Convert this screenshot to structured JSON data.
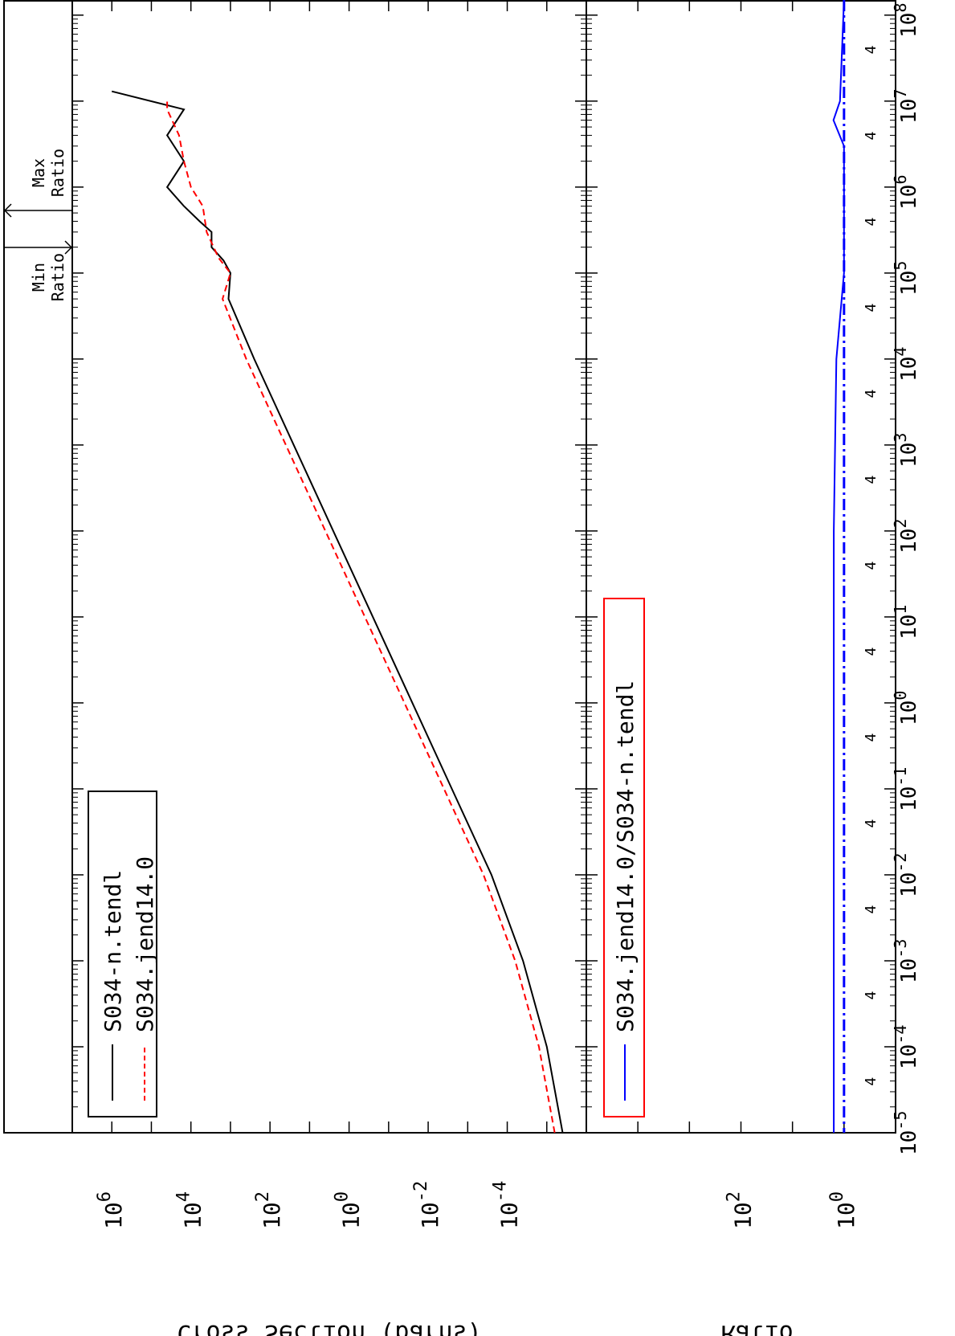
{
  "chart_data": [
    {
      "type": "line",
      "orientation": "rotated-90-clockwise",
      "x_scale": "log",
      "y_scale": "log",
      "ylabel": "Cross Section (barns)",
      "xlim": [
        1e-05,
        150000000
      ],
      "ylim": [
        1e-06,
        10000000.0
      ],
      "x_ticks": [
        "10^-5",
        "10^-4",
        "10^-3",
        "10^-2",
        "10^-1",
        "10^0",
        "10^1",
        "10^2",
        "10^3",
        "10^4",
        "10^5",
        "10^6",
        "10^7",
        "10^8"
      ],
      "x_tick_minor_label": "4",
      "y_ticks": [
        "10^-4",
        "10^-2",
        "10^0",
        "10^2",
        "10^4",
        "10^6"
      ],
      "series": [
        {
          "name": "S034-n.tendl",
          "color": "#000000",
          "style": "solid",
          "x": [
            1e-05,
            0.0001,
            0.001,
            0.01,
            0.1,
            1,
            10,
            100,
            1000,
            10000,
            50000,
            100000,
            140000,
            200000,
            300000,
            400000,
            600000,
            1000000,
            2000000,
            4000000,
            8000000,
            13000000
          ],
          "y": [
            3.98e-06,
            1e-05,
            3.98e-05,
            0.000251,
            0.00251,
            0.0251,
            0.251,
            2.51,
            25.1,
            251,
            1122,
            1000,
            1500,
            3000,
            3000,
            6000,
            15000,
            40000,
            15000,
            40000,
            15000,
            1000000.0
          ]
        },
        {
          "name": "S034.jend14.0",
          "color": "#ff0000",
          "style": "dashed",
          "x": [
            1e-05,
            0.0001,
            0.001,
            0.01,
            0.1,
            1,
            10,
            100,
            1000,
            10000,
            50000,
            100000,
            150000,
            300000,
            600000,
            1000000,
            2000000,
            4000000,
            8000000,
            10000000
          ],
          "y": [
            6.3e-06,
            1.58e-05,
            6.31e-05,
            0.000398,
            0.00398,
            0.0398,
            0.398,
            3.98,
            39.8,
            398,
            1585,
            1000,
            2000,
            4000,
            5000,
            10000,
            15000,
            20000,
            40000,
            40000
          ]
        }
      ]
    },
    {
      "type": "line",
      "orientation": "rotated-90-clockwise",
      "x_scale": "log",
      "y_scale": "log",
      "ylabel": "Ratio",
      "xlim": [
        1e-05,
        150000000
      ],
      "ylim": [
        0.1,
        100000
      ],
      "x_ticks": [
        "10^-5",
        "10^-4",
        "10^-3",
        "10^-2",
        "10^-1",
        "10^0",
        "10^1",
        "10^2",
        "10^3",
        "10^4",
        "10^5",
        "10^6",
        "10^7",
        "10^8"
      ],
      "y_ticks": [
        "10^0",
        "10^2"
      ],
      "reference_line": {
        "y": 1,
        "style": "dash-dot",
        "color": "#0000ff"
      },
      "series": [
        {
          "name": "S034.jend14.0/S034-n.tendl",
          "color": "#0000ff",
          "style": "solid",
          "x": [
            1e-05,
            100,
            10000,
            100000,
            200000,
            400000,
            800000,
            1500000,
            3000000,
            6000000,
            10000000,
            150000000
          ],
          "y": [
            1.58,
            1.58,
            1.41,
            1,
            1,
            1,
            1,
            1,
            1,
            1.6,
            1.2,
            1
          ]
        }
      ]
    }
  ],
  "annotations": {
    "max_ratio": "Max\nRatio",
    "min_ratio": "Min\nRatio"
  }
}
